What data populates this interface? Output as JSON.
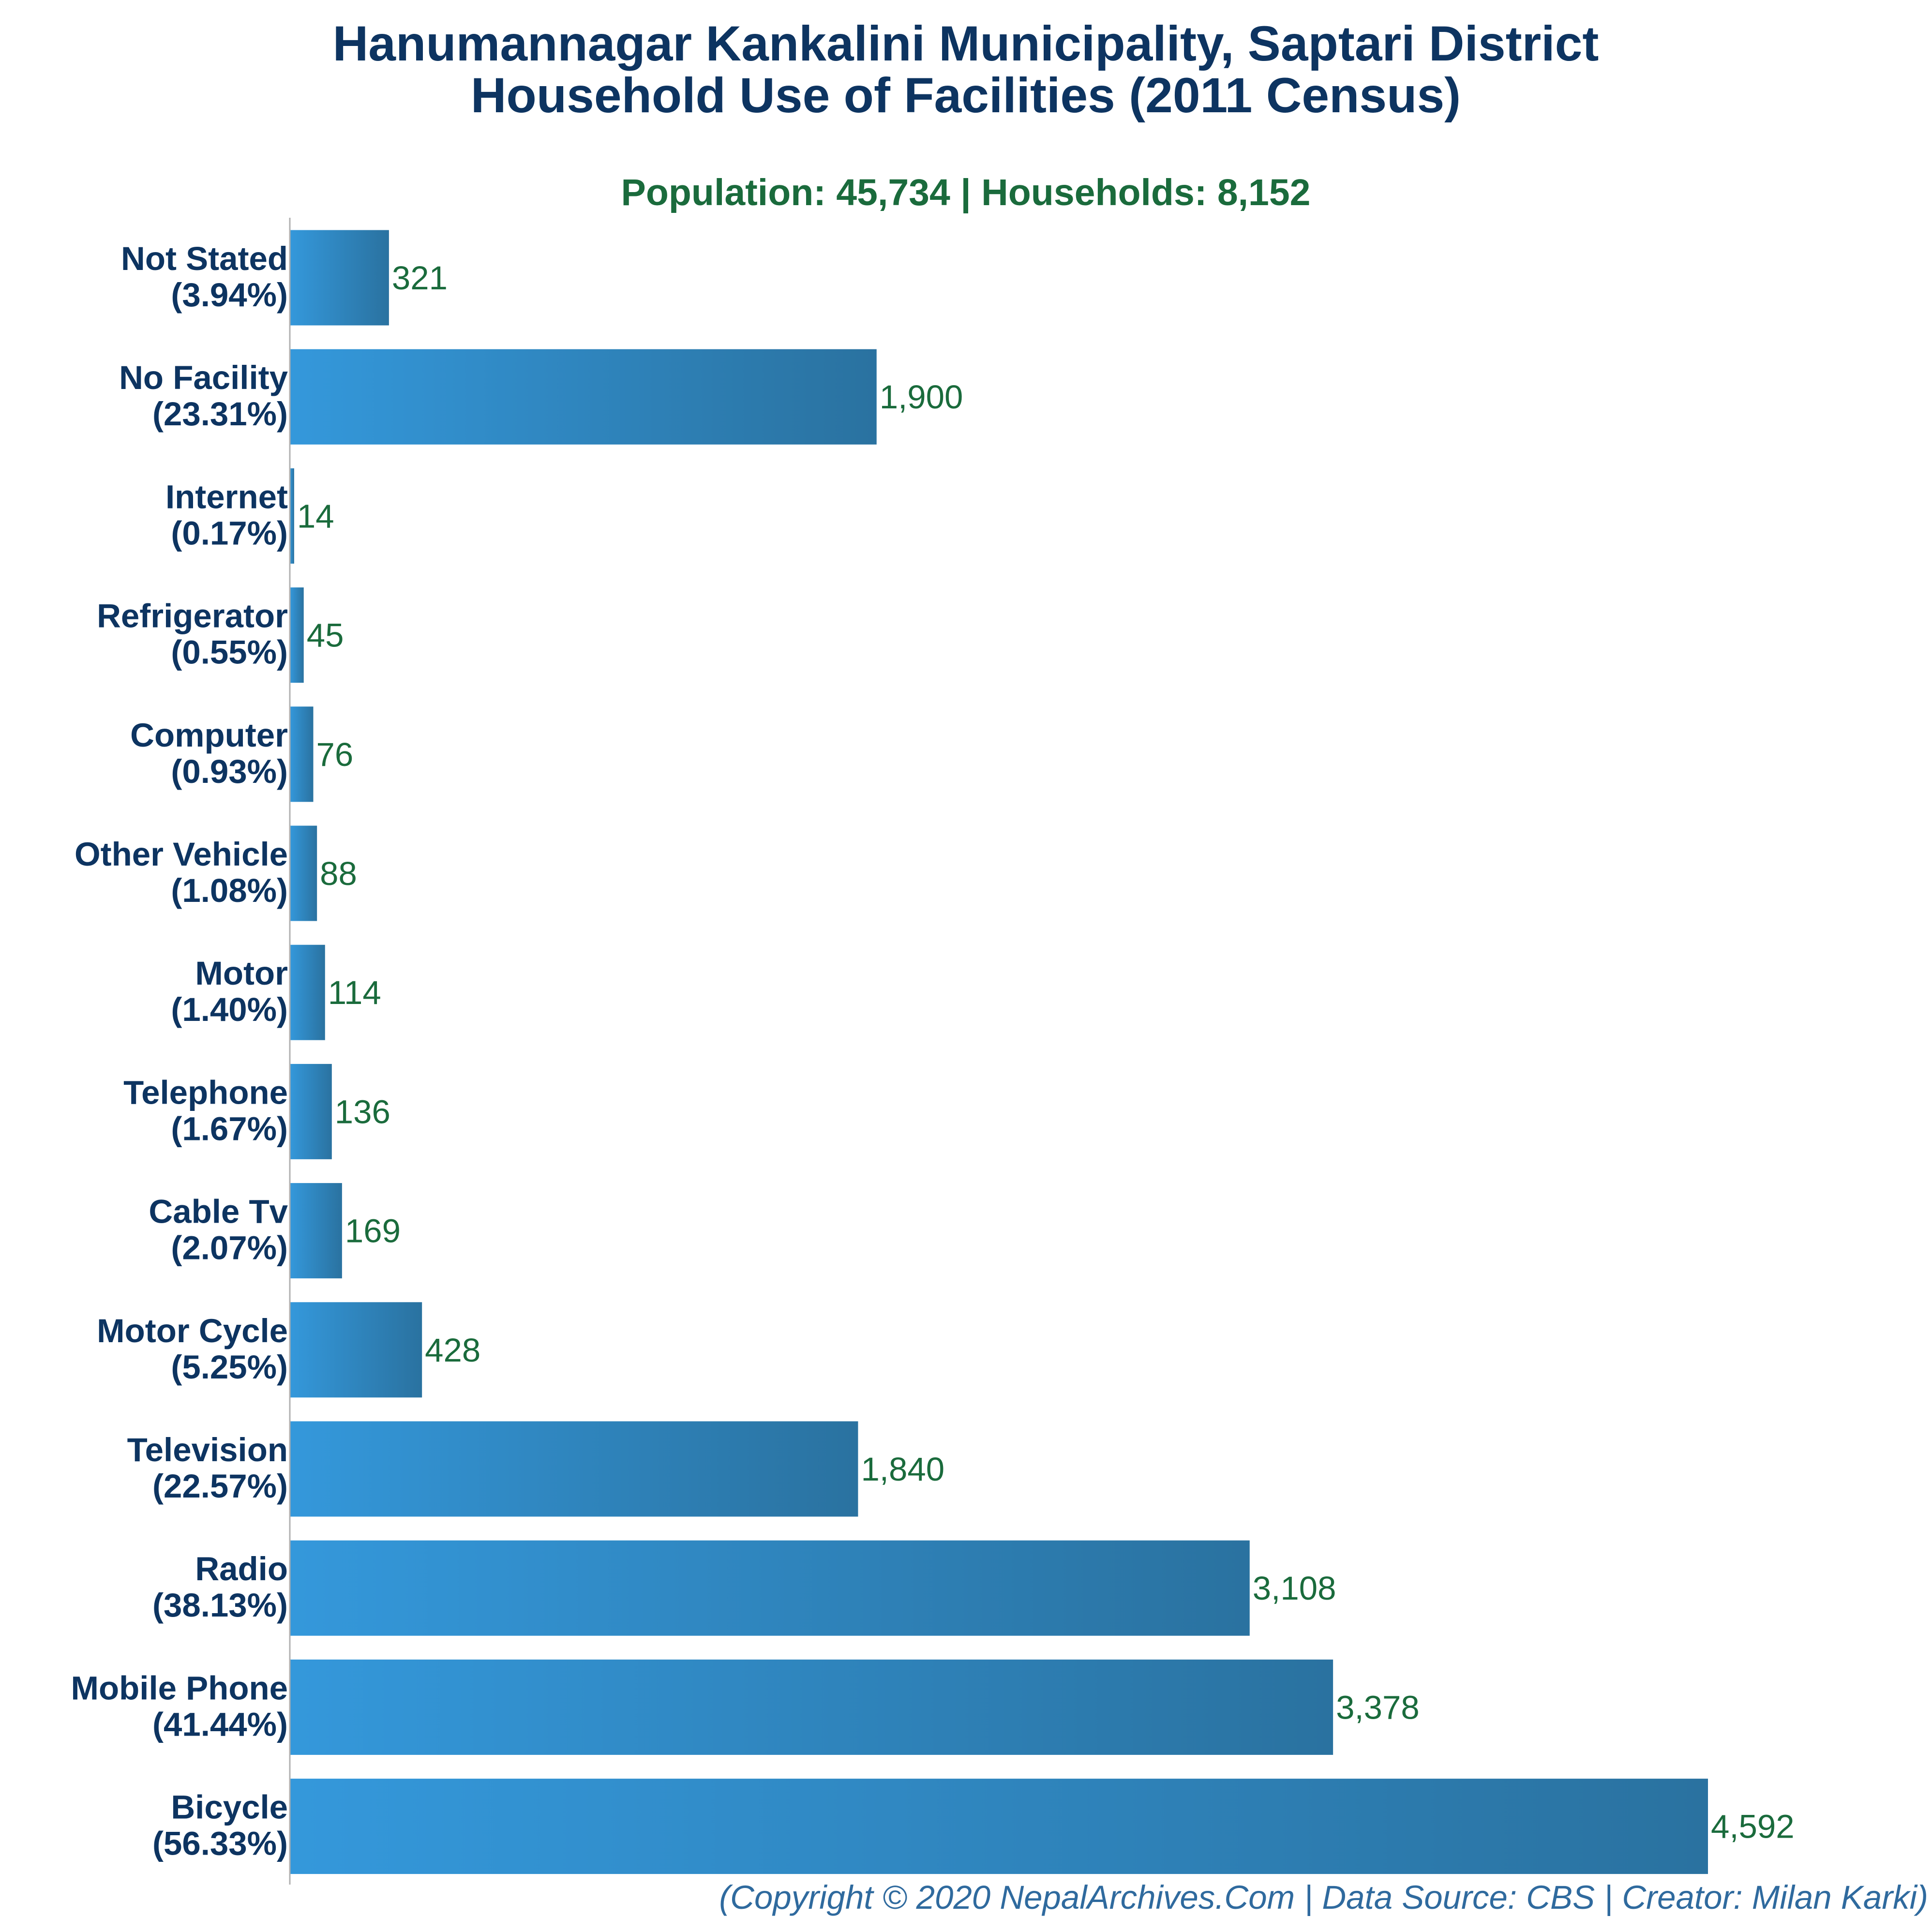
{
  "title": {
    "line1": "Hanumannagar Kankalini Municipality, Saptari District",
    "line2": "Household Use of Facilities (2011 Census)"
  },
  "subtitle": "Population: 45,734 | Households: 8,152",
  "footer": "(Copyright © 2020 NepalArchives.Com | Data Source: CBS | Creator: Milan Karki)",
  "colors": {
    "title": "#0d3461",
    "subtitle": "#1a6b3c",
    "category_label": "#0d3461",
    "value_label": "#1a6b3c",
    "footer": "#2f6a9e",
    "bar_gradient_start": "#3498db",
    "bar_gradient_end": "#2a72a0",
    "axis": "#b0b0b0"
  },
  "chart_data": {
    "type": "bar",
    "orientation": "horizontal",
    "categories": [
      "Not Stated",
      "No Facility",
      "Internet",
      "Refrigerator",
      "Computer",
      "Other Vehicle",
      "Motor",
      "Telephone",
      "Cable Tv",
      "Motor Cycle",
      "Television",
      "Radio",
      "Mobile Phone",
      "Bicycle"
    ],
    "percentages": [
      "(3.94%)",
      "(23.31%)",
      "(0.17%)",
      "(0.55%)",
      "(0.93%)",
      "(1.08%)",
      "(1.40%)",
      "(1.67%)",
      "(2.07%)",
      "(5.25%)",
      "(22.57%)",
      "(38.13%)",
      "(41.44%)",
      "(56.33%)"
    ],
    "values": [
      321,
      1900,
      14,
      45,
      76,
      88,
      114,
      136,
      169,
      428,
      1840,
      3108,
      3378,
      4592
    ],
    "value_labels": [
      "321",
      "1,900",
      "14",
      "45",
      "76",
      "88",
      "114",
      "136",
      "169",
      "428",
      "1,840",
      "3,108",
      "3,378",
      "4,592"
    ],
    "xlim": [
      0,
      4592
    ],
    "grid": false,
    "legend": "none"
  }
}
